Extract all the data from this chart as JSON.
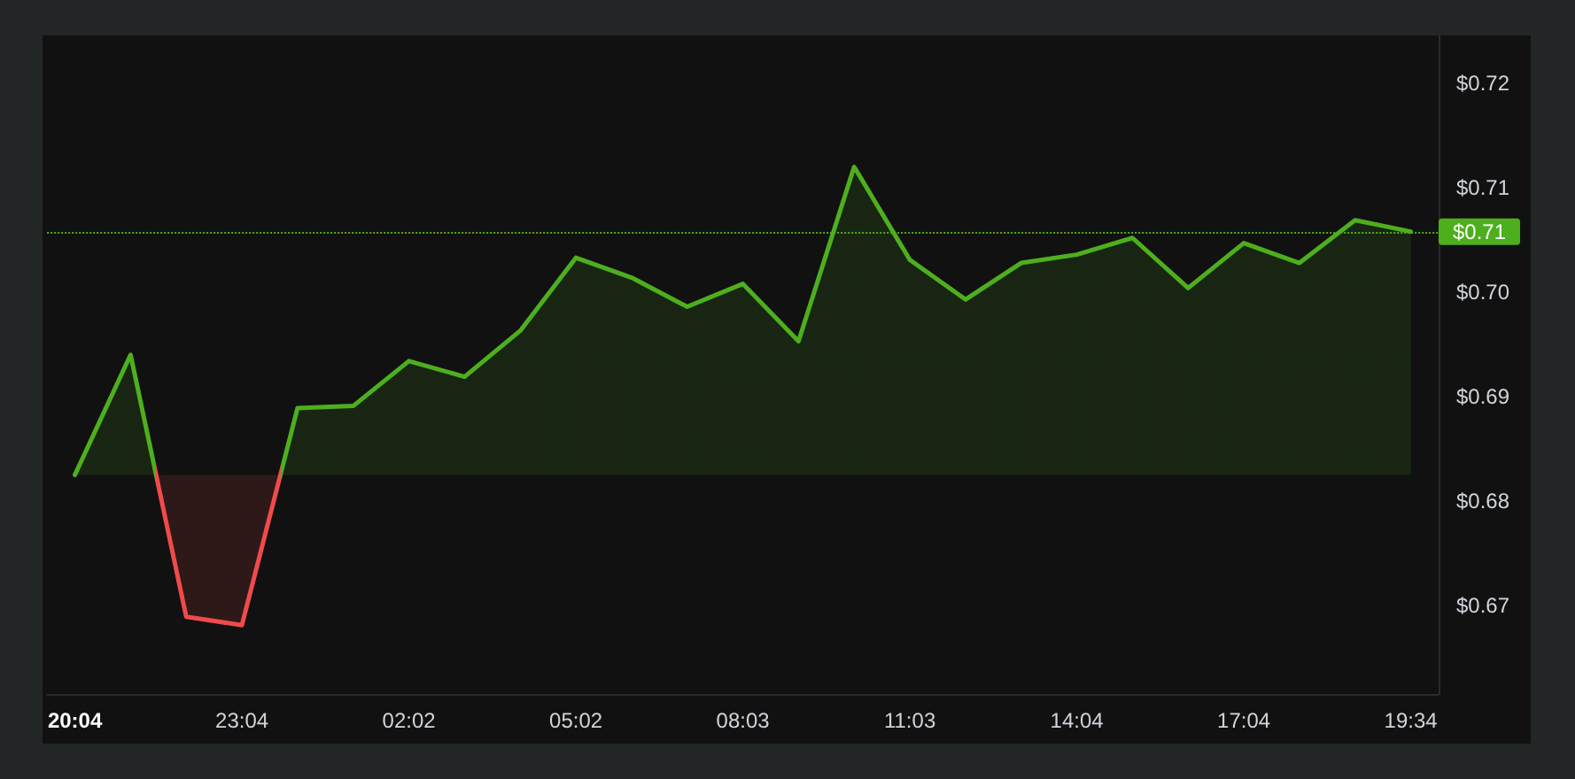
{
  "chart_data": {
    "type": "area",
    "categories": [
      "20:04",
      null,
      null,
      "23:04",
      null,
      null,
      "02:02",
      null,
      null,
      "05:02",
      null,
      null,
      "08:03",
      null,
      null,
      "11:03",
      null,
      null,
      "14:04",
      null,
      null,
      "17:04",
      null,
      null,
      "19:34"
    ],
    "series": [
      {
        "values": [
          0.6825,
          0.694,
          0.6689,
          0.6681,
          0.6889,
          0.6891,
          0.6934,
          0.6919,
          0.6963,
          0.7033,
          0.7014,
          0.6986,
          0.7008,
          0.6953,
          0.712,
          0.7031,
          0.6993,
          0.7028,
          0.7036,
          0.7052,
          0.7004,
          0.7047,
          0.7028,
          0.7069,
          0.7058
        ],
        "colors": [
          "#4daf1d",
          "#4daf1d",
          "#f04a4a",
          "#f04a4a",
          "#4daf1d",
          "#4daf1d",
          "#4daf1d",
          "#4daf1d",
          "#4daf1d",
          "#4daf1d",
          "#4daf1d",
          "#4daf1d",
          "#4daf1d",
          "#4daf1d",
          "#4daf1d",
          "#4daf1d",
          "#4daf1d",
          "#4daf1d",
          "#4daf1d",
          "#4daf1d",
          "#4daf1d",
          "#4daf1d",
          "#4daf1d",
          "#4daf1d",
          "#4daf1d"
        ]
      }
    ],
    "ylim": [
      0.6615,
      0.7246
    ],
    "yticks": [
      {
        "value": 0.67,
        "label": "$0.67"
      },
      {
        "value": 0.68,
        "label": "$0.68"
      },
      {
        "value": 0.69,
        "label": "$0.69"
      },
      {
        "value": 0.7,
        "label": "$0.70"
      },
      {
        "value": 0.71,
        "label": "$0.71"
      },
      {
        "value": 0.72,
        "label": "$0.72"
      }
    ],
    "ref_lines": [
      {
        "axis": "y",
        "value": 0.7058,
        "label": "$0.71",
        "color": "#4daf1d",
        "line_style": "dotted"
      }
    ]
  }
}
